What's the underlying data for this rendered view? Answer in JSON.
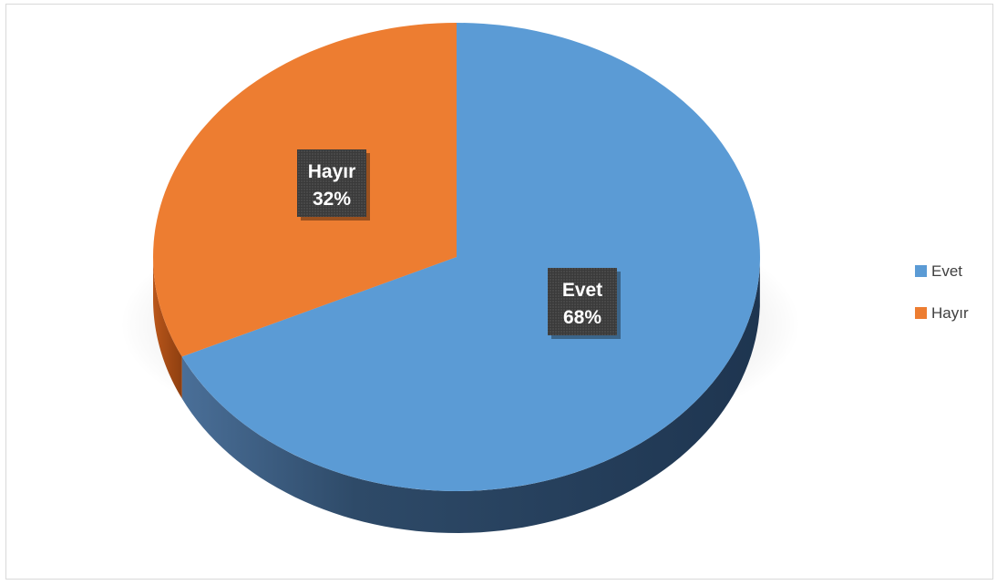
{
  "chart_data": {
    "type": "pie",
    "style": "3d",
    "categories": [
      "Evet",
      "Hayır"
    ],
    "values": [
      68,
      32
    ],
    "value_suffix": "%",
    "colors": {
      "Evet": "#5b9bd5",
      "Hayır": "#ed7d31"
    },
    "legend": {
      "placement": "right",
      "entries": [
        "Evet",
        "Hayır"
      ]
    },
    "title": "",
    "data_labels": [
      {
        "category": "Evet",
        "text": "68%"
      },
      {
        "category": "Hayır",
        "text": "32%"
      }
    ],
    "label_box_color": "#404040"
  }
}
